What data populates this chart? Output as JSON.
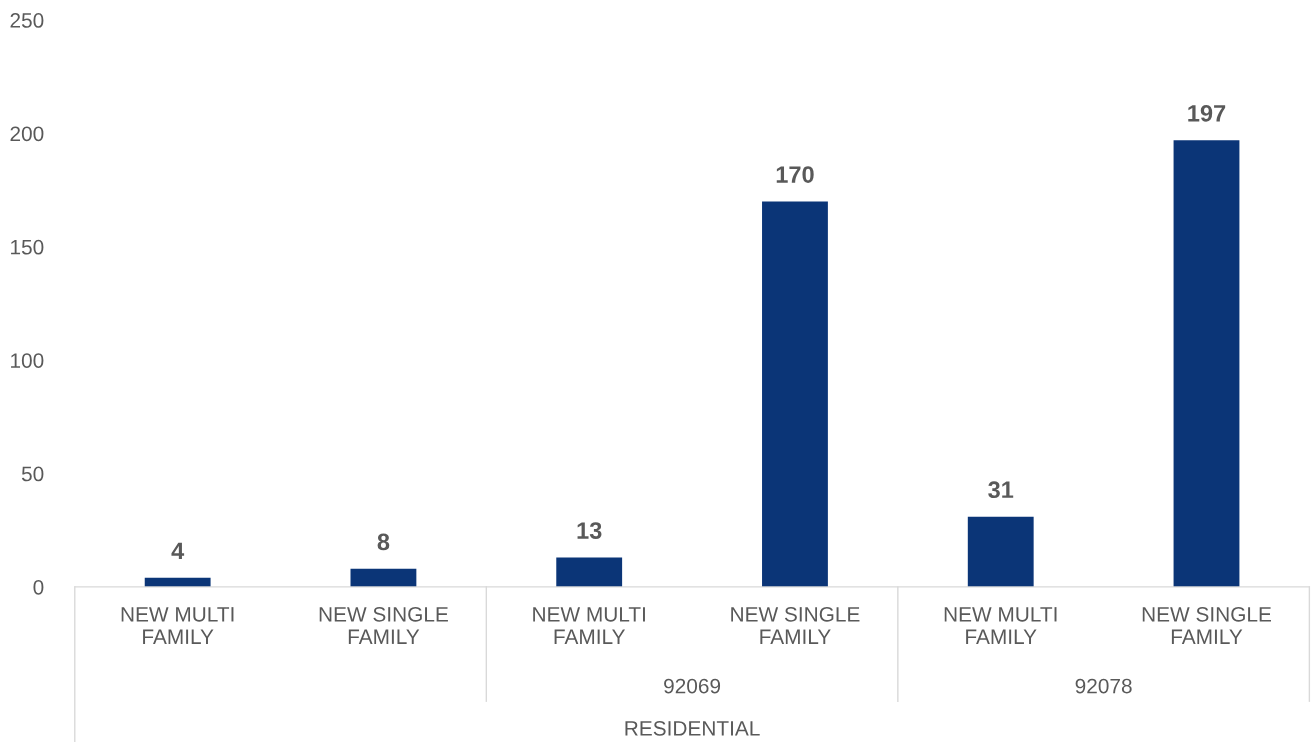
{
  "chart_data": {
    "type": "bar",
    "categories": [
      "NEW MULTI\nFAMILY",
      "NEW SINGLE\nFAMILY",
      "NEW MULTI\nFAMILY",
      "NEW SINGLE\nFAMILY",
      "NEW MULTI\nFAMILY",
      "NEW SINGLE\nFAMILY"
    ],
    "values": [
      4,
      8,
      13,
      170,
      31,
      197
    ],
    "color": "#0b3577",
    "ylim": [
      0,
      250
    ],
    "yticks": [
      0,
      50,
      100,
      150,
      200,
      250
    ],
    "data_labels": true,
    "grid": false,
    "legend": false,
    "annotations": [
      "92069",
      "92078",
      "RESIDENTIAL"
    ]
  }
}
